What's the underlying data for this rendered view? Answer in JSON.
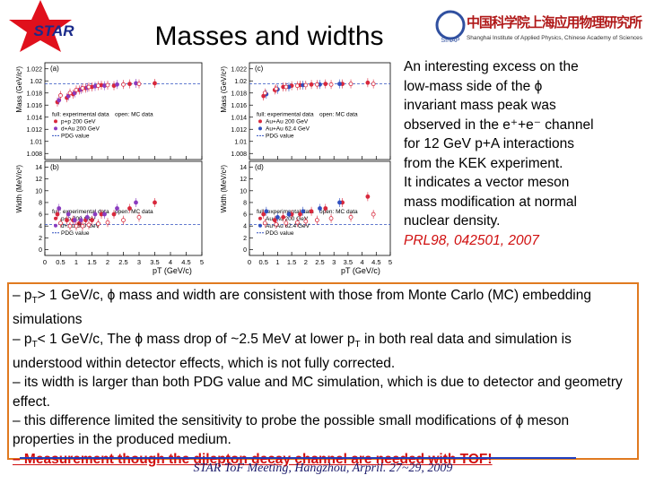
{
  "header": {
    "logo_text": "STAR",
    "title": "Masses and widths",
    "institute_cn": "中国科学院上海应用物理研究所",
    "institute_en": "Shanghai Institute of Applied Physics, Chinese Academy of Sciences",
    "institute_abbr": "SINAP"
  },
  "plots": [
    {
      "label": "(a)",
      "ylabel": "Mass (GeV/c²)",
      "ylim": [
        1.007,
        1.023
      ],
      "yticks": [
        1.008,
        1.01,
        1.012,
        1.014,
        1.016,
        1.018,
        1.02,
        1.022
      ],
      "xlim": [
        0,
        5
      ],
      "xticks": [
        0,
        0.5,
        1,
        1.5,
        2,
        2.5,
        3,
        3.5,
        4,
        4.5,
        5
      ],
      "pdg": 1.0195,
      "legend": [
        "full: experimental data",
        "open: MC data"
      ],
      "pdg_label": "PDG value",
      "series": [
        {
          "name": "p+p 200 GeV",
          "color": "#d8283c",
          "filled": true,
          "x": [
            0.4,
            0.7,
            0.9,
            1.1,
            1.3,
            1.5,
            1.8,
            2.2,
            2.7,
            3.5
          ],
          "values": [
            1.0165,
            1.0172,
            1.0178,
            1.0185,
            1.0188,
            1.019,
            1.0193,
            1.0192,
            1.0195,
            1.0196
          ]
        },
        {
          "name": "d+Au 200 GeV",
          "color": "#8a3cc0",
          "filled": true,
          "x": [
            0.45,
            0.75,
            0.95,
            1.15,
            1.35,
            1.6,
            1.9,
            2.3,
            2.9
          ],
          "values": [
            1.0168,
            1.0175,
            1.018,
            1.0186,
            1.0189,
            1.0191,
            1.0192,
            1.0194,
            1.0196
          ]
        },
        {
          "name": "MC",
          "color": "#d8283c",
          "filled": false,
          "x": [
            0.5,
            0.8,
            1.0,
            1.2,
            1.4,
            1.7,
            2.0,
            2.5,
            3.0
          ],
          "values": [
            1.0176,
            1.018,
            1.0185,
            1.0188,
            1.019,
            1.0192,
            1.0193,
            1.0194,
            1.0195
          ]
        }
      ]
    },
    {
      "label": "(b)",
      "ylabel": "Width (MeV/c²)",
      "ylim": [
        -1,
        15
      ],
      "yticks": [
        0,
        2,
        4,
        6,
        8,
        10,
        12,
        14
      ],
      "xlim": [
        0,
        5
      ],
      "xticks": [
        0,
        0.5,
        1,
        1.5,
        2,
        2.5,
        3,
        3.5,
        4,
        4.5,
        5
      ],
      "xlabel": "pT (GeV/c)",
      "pdg": 4.26,
      "legend": [
        "full: experimental data",
        "open: MC data"
      ],
      "pdg_label": "PDG value",
      "series": [
        {
          "name": "p+p 200 GeV",
          "color": "#d8283c",
          "filled": true,
          "x": [
            0.4,
            0.7,
            0.9,
            1.1,
            1.3,
            1.5,
            1.8,
            2.2,
            2.7,
            3.5
          ],
          "values": [
            6,
            5,
            5,
            4.5,
            5,
            5,
            6,
            6,
            7,
            8
          ]
        },
        {
          "name": "d+Au 200 GeV",
          "color": "#8a3cc0",
          "filled": true,
          "x": [
            0.45,
            0.75,
            0.95,
            1.15,
            1.35,
            1.6,
            1.9,
            2.3,
            2.9
          ],
          "values": [
            7,
            6,
            5,
            5,
            5.5,
            6,
            6,
            7,
            8
          ]
        },
        {
          "name": "MC",
          "color": "#d8283c",
          "filled": false,
          "x": [
            0.5,
            0.8,
            1.0,
            1.2,
            1.4,
            1.7,
            2.0,
            2.5,
            3.0
          ],
          "values": [
            4.5,
            4,
            4,
            4,
            4.2,
            4.4,
            4.6,
            5,
            5.5
          ]
        }
      ]
    },
    {
      "label": "(c)",
      "ylabel": "Mass (GeV/c²)",
      "ylim": [
        1.007,
        1.023
      ],
      "yticks": [
        1.008,
        1.01,
        1.012,
        1.014,
        1.016,
        1.018,
        1.02,
        1.022
      ],
      "xlim": [
        0,
        5
      ],
      "xticks": [
        0,
        0.5,
        1,
        1.5,
        2,
        2.5,
        3,
        3.5,
        4,
        4.5,
        5
      ],
      "pdg": 1.0195,
      "legend": [
        "full: experimental data",
        "open: MC data"
      ],
      "pdg_label": "PDG value",
      "series": [
        {
          "name": "Au+Au 200 GeV",
          "color": "#d8283c",
          "filled": true,
          "x": [
            0.5,
            0.9,
            1.2,
            1.5,
            1.8,
            2.2,
            2.7,
            3.3,
            4.2
          ],
          "values": [
            1.0175,
            1.0185,
            1.019,
            1.0192,
            1.0193,
            1.0194,
            1.0195,
            1.0195,
            1.0197
          ]
        },
        {
          "name": "Au+Au 62.4 GeV",
          "color": "#3050c0",
          "filled": true,
          "x": [
            0.6,
            1.0,
            1.4,
            1.9,
            2.5,
            3.2
          ],
          "values": [
            1.0178,
            1.0186,
            1.019,
            1.0193,
            1.0194,
            1.0195
          ]
        },
        {
          "name": "MC",
          "color": "#d8283c",
          "filled": false,
          "x": [
            0.55,
            0.95,
            1.3,
            1.7,
            2.0,
            2.4,
            2.9,
            3.6,
            4.4
          ],
          "values": [
            1.018,
            1.0187,
            1.019,
            1.0192,
            1.0193,
            1.0194,
            1.0194,
            1.0195,
            1.0195
          ]
        }
      ]
    },
    {
      "label": "(d)",
      "ylabel": "Width (MeV/c²)",
      "ylim": [
        -1,
        15
      ],
      "yticks": [
        0,
        2,
        4,
        6,
        8,
        10,
        12,
        14
      ],
      "xlim": [
        0,
        5
      ],
      "xticks": [
        0,
        0.5,
        1,
        1.5,
        2,
        2.5,
        3,
        3.5,
        4,
        4.5,
        5
      ],
      "xlabel": "pT (GeV/c)",
      "pdg": 4.26,
      "legend": [
        "full: experimental data",
        "open: MC data"
      ],
      "pdg_label": "PDG value",
      "series": [
        {
          "name": "Au+Au 200 GeV",
          "color": "#d8283c",
          "filled": true,
          "x": [
            0.5,
            0.9,
            1.2,
            1.5,
            1.8,
            2.2,
            2.7,
            3.3,
            4.2
          ],
          "values": [
            6,
            5,
            5.5,
            6,
            6,
            6.5,
            7,
            8,
            9
          ]
        },
        {
          "name": "Au+Au 62.4 GeV",
          "color": "#3050c0",
          "filled": true,
          "x": [
            0.6,
            1.0,
            1.4,
            1.9,
            2.5,
            3.2
          ],
          "values": [
            6.5,
            5.5,
            6,
            6.5,
            7,
            8
          ]
        },
        {
          "name": "MC",
          "color": "#d8283c",
          "filled": false,
          "x": [
            0.55,
            0.95,
            1.3,
            1.7,
            2.0,
            2.4,
            2.9,
            3.6,
            4.4
          ],
          "values": [
            4.5,
            4.3,
            4.5,
            4.6,
            4.8,
            5,
            5.3,
            5.5,
            6
          ]
        }
      ]
    }
  ],
  "side_text": {
    "lines": [
      "An interesting excess on the",
      "low-mass side of the ϕ",
      "invariant mass peak was",
      "observed in the e⁺+e⁻ channel",
      "for 12 GeV p+A interactions",
      "from the KEK experiment.",
      "It indicates a vector meson",
      "mass modification at normal",
      "nuclear density."
    ],
    "reference": "PRL98, 042501, 2007"
  },
  "bullets": [
    [
      "– p",
      "T",
      "> 1 GeV/c, ϕ mass and width are consistent with those from Monte Carlo (MC) embedding simulations"
    ],
    [
      "– p",
      "T",
      "< 1 GeV/c, The ϕ mass drop of ~2.5 MeV at lower p",
      "T",
      " in both real data and simulation is understood within detector effects, which is not fully corrected."
    ],
    [
      "– its width is larger than both PDG value and MC simulation, which is due to detector and geometry effect."
    ],
    [
      "– this difference limited the sensitivity to probe the possible small modifications of ϕ meson properties in the produced medium."
    ]
  ],
  "conclusion": "– Measurement though the dilepton decay channel are needed with TOF!",
  "footer": "STAR ToF Meeting, Hangzhou, Arpril. 27~29, 2009"
}
